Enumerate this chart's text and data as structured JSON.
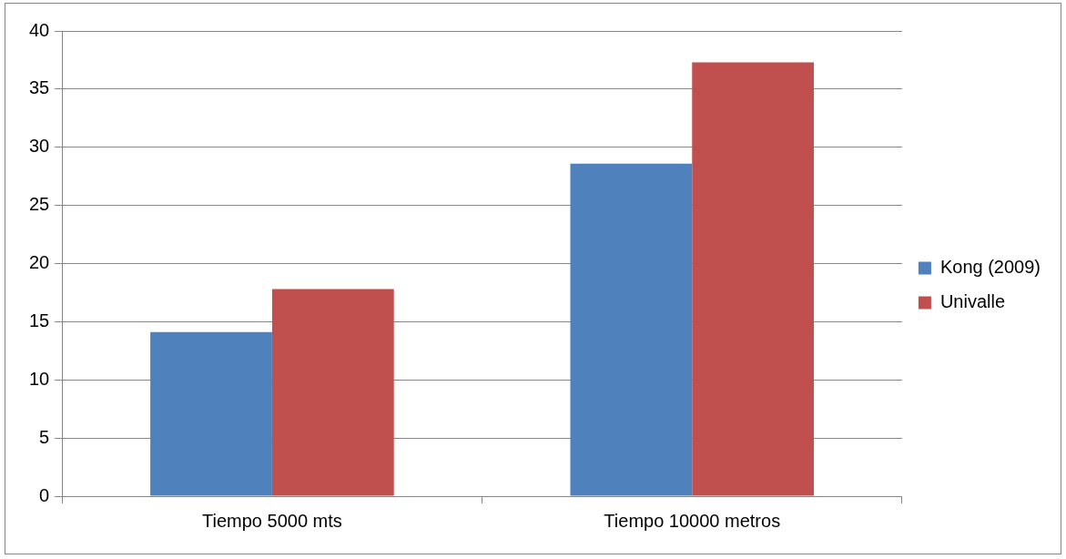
{
  "chart_data": {
    "type": "bar",
    "categories": [
      "Tiempo 5000 mts",
      "Tiempo 10000 metros"
    ],
    "series": [
      {
        "name": "Kong (2009)",
        "color": "#4f81bd",
        "values": [
          14.1,
          28.6
        ]
      },
      {
        "name": "Univalle",
        "color": "#c0504d",
        "values": [
          17.8,
          37.3
        ]
      }
    ],
    "ylim": [
      0,
      40
    ],
    "yticks": [
      0,
      5,
      10,
      15,
      20,
      25,
      30,
      35,
      40
    ],
    "grid": "y",
    "legend": "right"
  }
}
